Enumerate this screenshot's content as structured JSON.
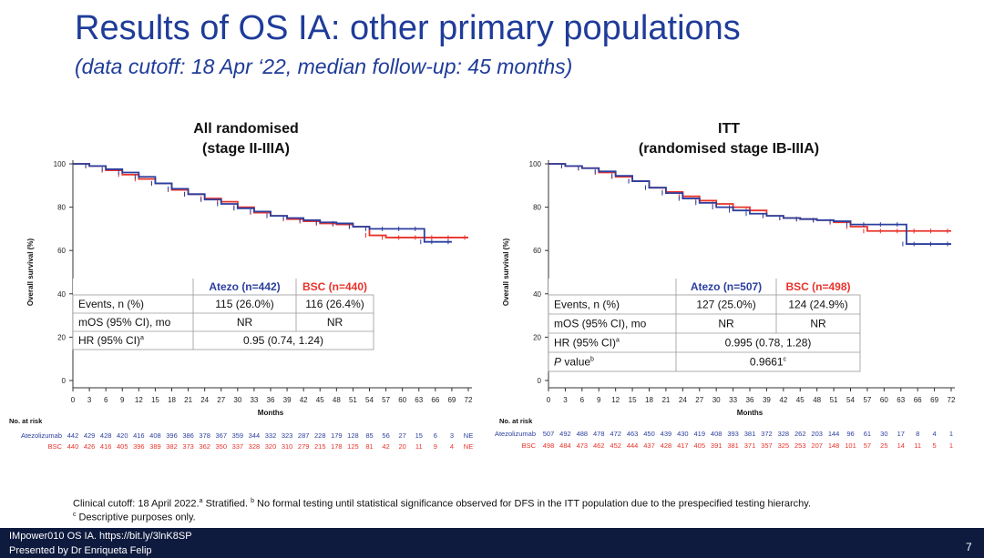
{
  "slide": {
    "title": "Results of OS IA: other primary populations",
    "subtitle": "(data cutoff: 18 Apr ‘22, median follow-up: 45 months)",
    "footnote_line1_a": "Clinical cutoff: 18 April 2022.",
    "footnote_line1_b": " Stratified. ",
    "footnote_line1_c": " No formal testing until statistical significance observed for DFS in the ITT population due to the prespecified testing hierarchy.",
    "footnote_line2": " Descriptive purposes only.",
    "sup_a": "a",
    "sup_b": "b",
    "sup_c": "c",
    "footer_line1": "IMpower010 OS IA. https://bit.ly/3lnK8SP",
    "footer_line2": "Presented by Dr Enriqueta Felip",
    "page_number": "7"
  },
  "colors": {
    "atezo": "#2b3f9e",
    "bsc": "#e8332b",
    "title": "#1f3c99"
  },
  "chart_data": [
    {
      "type": "line",
      "title_line1": "All randomised",
      "title_line2": "(stage II-IIIA)",
      "xlabel": "Months",
      "ylabel": "Overall survival (%)",
      "xlim": [
        0,
        72
      ],
      "ylim": [
        0,
        100
      ],
      "x_ticks": [
        0,
        3,
        6,
        9,
        12,
        15,
        18,
        21,
        24,
        27,
        30,
        33,
        36,
        39,
        42,
        45,
        48,
        51,
        54,
        57,
        60,
        63,
        66,
        69,
        72
      ],
      "y_ticks": [
        0,
        20,
        40,
        60,
        80,
        100
      ],
      "series": [
        {
          "name": "Atezolizumab",
          "color": "#2b3f9e",
          "x": [
            0,
            3,
            6,
            9,
            12,
            15,
            18,
            21,
            24,
            27,
            30,
            33,
            36,
            39,
            42,
            45,
            48,
            51,
            54,
            57,
            60,
            63,
            64,
            66,
            69
          ],
          "y": [
            100,
            99,
            97.5,
            96,
            94,
            91,
            88.5,
            86,
            83.5,
            81.5,
            79.5,
            78,
            76,
            75,
            74,
            73,
            72.5,
            71,
            70,
            70,
            70,
            70,
            64,
            64,
            64
          ]
        },
        {
          "name": "BSC",
          "color": "#e8332b",
          "x": [
            0,
            3,
            6,
            9,
            12,
            15,
            18,
            21,
            24,
            27,
            30,
            33,
            36,
            39,
            42,
            45,
            48,
            51,
            54,
            57,
            60,
            63,
            66,
            69,
            72
          ],
          "y": [
            100,
            99,
            97,
            95,
            93,
            91,
            88,
            86,
            84,
            82.5,
            80,
            77.5,
            76,
            74.5,
            73.5,
            72.5,
            72,
            71,
            67,
            66,
            66,
            66,
            66,
            66,
            66
          ]
        }
      ],
      "table": {
        "col_atezo": "Atezo (n=442)",
        "col_bsc": "BSC (n=440)",
        "rows": [
          {
            "label": "Events, n (%)",
            "atezo": "115  (26.0%)",
            "bsc": "116  (26.4%)"
          },
          {
            "label": "mOS (95% CI), mo",
            "atezo": "NR",
            "bsc": "NR"
          },
          {
            "label": "HR (95% CI)",
            "sup": "a",
            "merged": "0.95 (0.74, 1.24)"
          }
        ]
      },
      "risk": {
        "header": "No. at risk",
        "rows": [
          {
            "name": "Atezolizumab",
            "values": [
              "442",
              "429",
              "428",
              "420",
              "416",
              "408",
              "396",
              "386",
              "378",
              "367",
              "359",
              "344",
              "332",
              "323",
              "287",
              "228",
              "179",
              "128",
              "85",
              "56",
              "27",
              "15",
              "6",
              "3",
              "NE"
            ]
          },
          {
            "name": "BSC",
            "values": [
              "440",
              "426",
              "416",
              "405",
              "396",
              "389",
              "382",
              "373",
              "362",
              "350",
              "337",
              "328",
              "320",
              "310",
              "279",
              "215",
              "178",
              "125",
              "81",
              "42",
              "20",
              "11",
              "9",
              "4",
              "NE"
            ]
          }
        ]
      }
    },
    {
      "type": "line",
      "title_line1": "ITT",
      "title_line2": "(randomised stage IB-IIIA)",
      "xlabel": "Months",
      "ylabel": "Overall survival (%)",
      "xlim": [
        0,
        72
      ],
      "ylim": [
        0,
        100
      ],
      "x_ticks": [
        0,
        3,
        6,
        9,
        12,
        15,
        18,
        21,
        24,
        27,
        30,
        33,
        36,
        39,
        42,
        45,
        48,
        51,
        54,
        57,
        60,
        63,
        66,
        69,
        72
      ],
      "y_ticks": [
        0,
        20,
        40,
        60,
        80,
        100
      ],
      "series": [
        {
          "name": "Atezolizumab",
          "color": "#2b3f9e",
          "x": [
            0,
            3,
            6,
            9,
            12,
            15,
            18,
            21,
            24,
            27,
            30,
            33,
            36,
            39,
            42,
            45,
            48,
            51,
            54,
            57,
            60,
            63,
            64,
            66,
            69,
            72
          ],
          "y": [
            100,
            99,
            98,
            96.5,
            94.5,
            92,
            89,
            86.5,
            84,
            82,
            80,
            78.5,
            77,
            76,
            75,
            74.5,
            74,
            73.5,
            72,
            72,
            72,
            72,
            63,
            63,
            63,
            63
          ]
        },
        {
          "name": "BSC",
          "color": "#e8332b",
          "x": [
            0,
            3,
            6,
            9,
            12,
            15,
            18,
            21,
            24,
            27,
            30,
            33,
            36,
            39,
            42,
            45,
            48,
            51,
            54,
            57,
            60,
            63,
            66,
            69,
            72
          ],
          "y": [
            100,
            99,
            98,
            96,
            94,
            92,
            89,
            87,
            85,
            83,
            81.5,
            80,
            78.5,
            76,
            75,
            74.5,
            74,
            73,
            71,
            69,
            69,
            69,
            69,
            69,
            69
          ]
        }
      ],
      "table": {
        "col_atezo": "Atezo (n=507)",
        "col_bsc": "BSC (n=498)",
        "rows": [
          {
            "label": "Events, n (%)",
            "atezo": "127 (25.0%)",
            "bsc": "124 (24.9%)"
          },
          {
            "label": "mOS (95% CI), mo",
            "atezo": "NR",
            "bsc": "NR"
          },
          {
            "label": "HR (95% CI)",
            "sup": "a",
            "merged": "0.995 (0.78, 1.28)"
          },
          {
            "label": "P value",
            "label_italic_prefix": "P",
            "label_rest": " value",
            "sup": "b",
            "merged": "0.9661",
            "merged_sup": "c"
          }
        ]
      },
      "risk": {
        "header": "No. at risk",
        "rows": [
          {
            "name": "Atezolizumab",
            "values": [
              "507",
              "492",
              "488",
              "478",
              "472",
              "463",
              "450",
              "439",
              "430",
              "419",
              "408",
              "393",
              "381",
              "372",
              "328",
              "262",
              "203",
              "144",
              "96",
              "61",
              "30",
              "17",
              "8",
              "4",
              "1"
            ]
          },
          {
            "name": "BSC",
            "values": [
              "498",
              "484",
              "473",
              "462",
              "452",
              "444",
              "437",
              "428",
              "417",
              "405",
              "391",
              "381",
              "371",
              "357",
              "325",
              "253",
              "207",
              "148",
              "101",
              "57",
              "25",
              "14",
              "11",
              "5",
              "1"
            ]
          }
        ]
      }
    }
  ]
}
